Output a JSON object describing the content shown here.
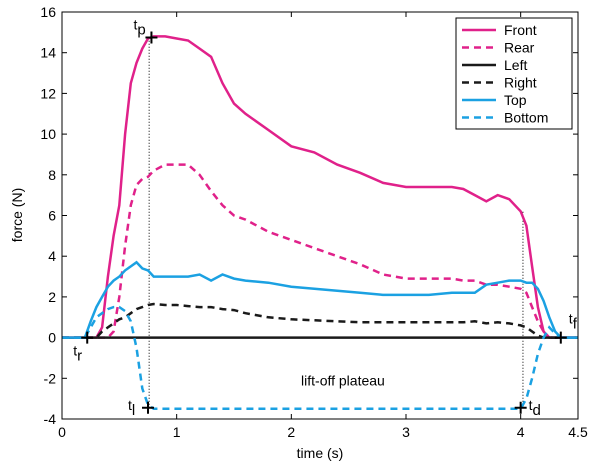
{
  "chart_data": {
    "type": "line",
    "x_label": "time (s)",
    "y_label": "force (N)",
    "xlim": [
      0,
      4.5
    ],
    "ylim": [
      -4,
      16
    ],
    "xticks": [
      0,
      1,
      2,
      3,
      4,
      4.5
    ],
    "yticks": [
      -4,
      -2,
      0,
      2,
      4,
      6,
      8,
      10,
      12,
      14,
      16
    ],
    "legend": "upper right",
    "x": [
      0,
      0.2,
      0.25,
      0.3,
      0.35,
      0.4,
      0.45,
      0.5,
      0.55,
      0.6,
      0.65,
      0.7,
      0.75,
      0.8,
      0.9,
      1.0,
      1.1,
      1.2,
      1.3,
      1.4,
      1.5,
      1.6,
      1.8,
      2.0,
      2.2,
      2.4,
      2.6,
      2.8,
      3.0,
      3.2,
      3.4,
      3.5,
      3.6,
      3.7,
      3.8,
      3.9,
      4.0,
      4.05,
      4.1,
      4.15,
      4.2,
      4.25,
      4.3,
      4.35,
      4.4,
      4.5
    ],
    "series": [
      {
        "name": "Front",
        "color": "#e0218a",
        "dash": false,
        "values": [
          0,
          0,
          0,
          0,
          0.5,
          3,
          5,
          6.5,
          10,
          12.5,
          13.5,
          14.2,
          14.7,
          14.8,
          14.8,
          14.7,
          14.6,
          14.2,
          13.8,
          12.5,
          11.5,
          11,
          10.2,
          9.4,
          9.1,
          8.5,
          8.1,
          7.6,
          7.4,
          7.4,
          7.4,
          7.3,
          7.0,
          6.7,
          7.0,
          6.8,
          6.2,
          5.5,
          3.5,
          1.5,
          0.3,
          0,
          0,
          0,
          0,
          0
        ]
      },
      {
        "name": "Rear",
        "color": "#e0218a",
        "dash": true,
        "values": [
          0,
          0,
          0,
          0,
          0,
          0,
          0.3,
          2,
          4.5,
          6.5,
          7.5,
          7.8,
          7.9,
          8.2,
          8.5,
          8.5,
          8.5,
          8.0,
          7.2,
          6.5,
          6.0,
          5.8,
          5.2,
          4.8,
          4.4,
          4.0,
          3.6,
          3.1,
          2.9,
          2.9,
          2.9,
          2.8,
          2.8,
          2.6,
          2.6,
          2.5,
          2.4,
          2.2,
          1.5,
          0.8,
          0.3,
          0,
          0,
          0,
          0,
          0
        ]
      },
      {
        "name": "Left",
        "color": "#1a1a1a",
        "dash": false,
        "values": [
          0,
          0,
          0,
          0,
          0,
          0,
          0,
          0,
          0,
          0,
          0,
          0,
          0,
          0,
          0,
          0,
          0,
          0,
          0,
          0,
          0,
          0,
          0,
          0,
          0,
          0,
          0,
          0,
          0,
          0,
          0,
          0,
          0,
          0,
          0,
          0,
          0,
          0,
          0,
          0,
          0,
          0,
          0,
          0,
          0,
          0
        ]
      },
      {
        "name": "Right",
        "color": "#1a1a1a",
        "dash": true,
        "values": [
          0,
          0,
          0,
          0,
          0.3,
          0.5,
          0.7,
          0.9,
          1.0,
          1.2,
          1.4,
          1.5,
          1.6,
          1.65,
          1.6,
          1.6,
          1.55,
          1.5,
          1.5,
          1.4,
          1.35,
          1.2,
          1.0,
          0.9,
          0.85,
          0.8,
          0.75,
          0.75,
          0.75,
          0.75,
          0.75,
          0.75,
          0.8,
          0.7,
          0.75,
          0.7,
          0.6,
          0.5,
          0.3,
          0.1,
          0,
          0,
          0,
          0,
          0,
          0
        ]
      },
      {
        "name": "Top",
        "color": "#1ba1e2",
        "dash": false,
        "values": [
          0,
          0,
          0.8,
          1.5,
          2.0,
          2.5,
          2.8,
          3.0,
          3.3,
          3.5,
          3.7,
          3.4,
          3.3,
          3.0,
          3.0,
          3.0,
          3.0,
          3.1,
          2.8,
          3.1,
          2.9,
          2.8,
          2.7,
          2.5,
          2.4,
          2.3,
          2.2,
          2.1,
          2.1,
          2.1,
          2.2,
          2.2,
          2.2,
          2.6,
          2.7,
          2.8,
          2.8,
          2.7,
          2.7,
          2.4,
          1.8,
          1.0,
          0.3,
          0,
          0,
          0
        ]
      },
      {
        "name": "Bottom",
        "color": "#1ba1e2",
        "dash": true,
        "values": [
          0,
          0,
          0.5,
          1.0,
          1.2,
          1.4,
          1.5,
          1.5,
          1.3,
          0.8,
          -0.5,
          -2.5,
          -3.3,
          -3.5,
          -3.5,
          -3.5,
          -3.5,
          -3.5,
          -3.5,
          -3.5,
          -3.5,
          -3.5,
          -3.5,
          -3.5,
          -3.5,
          -3.5,
          -3.5,
          -3.5,
          -3.5,
          -3.5,
          -3.5,
          -3.5,
          -3.5,
          -3.5,
          -3.5,
          -3.5,
          -3.5,
          -3.0,
          -2.0,
          -0.8,
          0,
          0.5,
          0.2,
          0,
          0,
          0
        ]
      }
    ],
    "events": [
      {
        "label": "t",
        "sub": "p",
        "x": 0.78,
        "y": 14.75
      },
      {
        "label": "t",
        "sub": "r",
        "x": 0.22,
        "y": 0
      },
      {
        "label": "t",
        "sub": "l",
        "x": 0.75,
        "y": -3.45
      },
      {
        "label": "t",
        "sub": "d",
        "x": 4.0,
        "y": -3.45
      },
      {
        "label": "t",
        "sub": "f",
        "x": 4.35,
        "y": 0
      }
    ],
    "vlines": [
      {
        "x": 0.76,
        "y0": -3.45,
        "y1": 14.75
      },
      {
        "x": 4.02,
        "y0": -3.45,
        "y1": 6.2
      }
    ],
    "plateau_label": "lift-off plateau"
  }
}
